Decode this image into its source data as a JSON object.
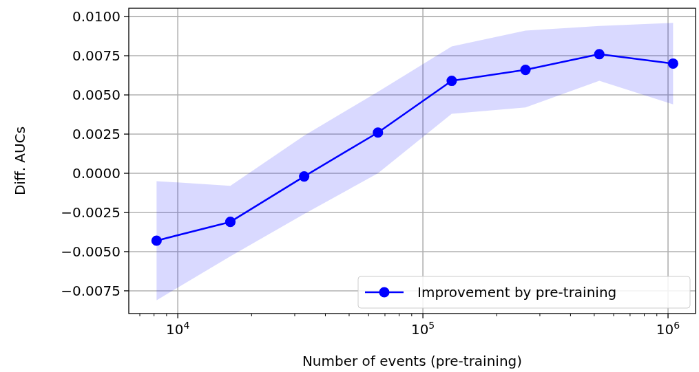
{
  "chart_data": {
    "type": "line",
    "xlabel": "Number of events (pre-training)",
    "ylabel": "Diff. AUCs",
    "x": [
      8192,
      16384,
      32768,
      65536,
      131072,
      262144,
      524288,
      1048576
    ],
    "series": [
      {
        "name": "Improvement by pre-training",
        "color": "#0000ff",
        "values": [
          -0.0043,
          -0.0031,
          -0.0002,
          0.0026,
          0.0059,
          0.0066,
          0.0076,
          0.007
        ],
        "lower": [
          -0.0081,
          -0.0053,
          -0.0026,
          0.0,
          0.0038,
          0.0042,
          0.0059,
          0.0044
        ],
        "upper": [
          -0.0005,
          -0.0008,
          0.0024,
          0.0052,
          0.0081,
          0.0091,
          0.0094,
          0.0096
        ]
      }
    ],
    "log": "x",
    "xlim": [
      6310,
      1295000
    ],
    "xticks": [
      {
        "value": 7000,
        "label": null
      },
      {
        "value": 8000,
        "label": null
      },
      {
        "value": 9000,
        "label": null
      },
      {
        "value": 10000,
        "label": "10$^{4}$"
      },
      {
        "value": 20000,
        "label": null
      },
      {
        "value": 30000,
        "label": null
      },
      {
        "value": 40000,
        "label": null
      },
      {
        "value": 50000,
        "label": null
      },
      {
        "value": 60000,
        "label": null
      },
      {
        "value": 70000,
        "label": null
      },
      {
        "value": 80000,
        "label": null
      },
      {
        "value": 90000,
        "label": null
      },
      {
        "value": 100000,
        "label": "10$^{5}$"
      },
      {
        "value": 200000,
        "label": null
      },
      {
        "value": 300000,
        "label": null
      },
      {
        "value": 400000,
        "label": null
      },
      {
        "value": 500000,
        "label": null
      },
      {
        "value": 600000,
        "label": null
      },
      {
        "value": 700000,
        "label": null
      },
      {
        "value": 800000,
        "label": null
      },
      {
        "value": 900000,
        "label": null
      },
      {
        "value": 1000000,
        "label": "10$^{6}$"
      }
    ],
    "ylim": [
      -0.00895,
      0.01053
    ],
    "yticks": [
      {
        "value": -0.0075,
        "label": "−0.0075"
      },
      {
        "value": -0.005,
        "label": "−0.0050"
      },
      {
        "value": -0.0025,
        "label": "−0.0025"
      },
      {
        "value": 0,
        "label": "0.0000"
      },
      {
        "value": 0.0025,
        "label": "0.0025"
      },
      {
        "value": 0.005,
        "label": "0.0050"
      },
      {
        "value": 0.0075,
        "label": "0.0075"
      },
      {
        "value": 0.01,
        "label": "0.0100"
      }
    ],
    "grid": true,
    "legend": "bottom right",
    "marker": "circle",
    "line_style": "solid"
  }
}
